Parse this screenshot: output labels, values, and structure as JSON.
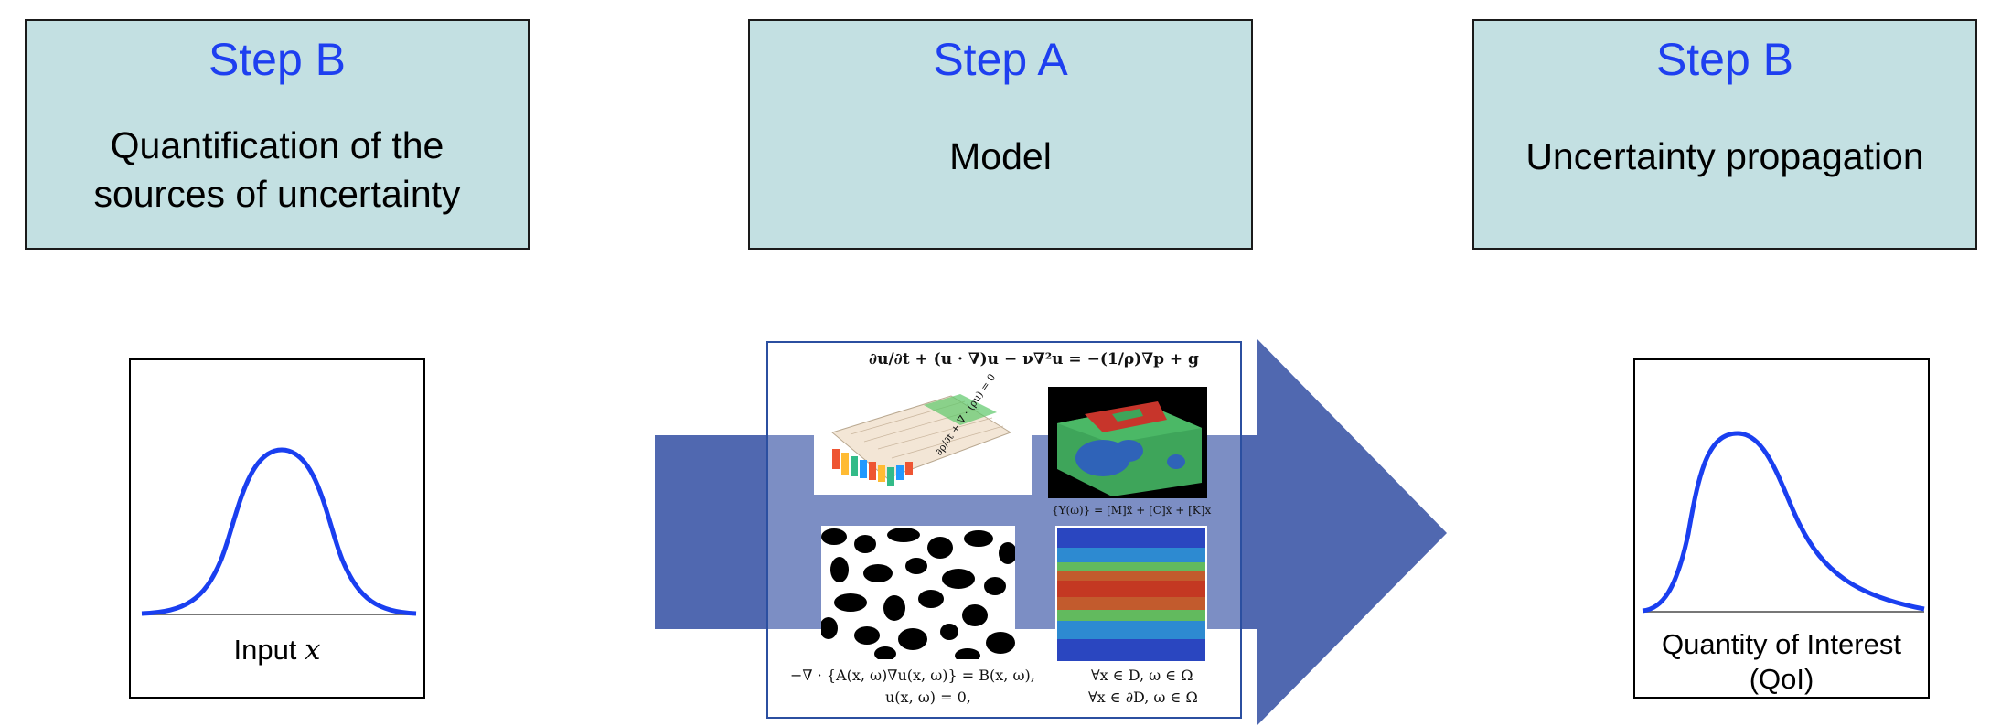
{
  "steps": [
    {
      "title": "Step B",
      "description": "Quantification of the sources of uncertainty"
    },
    {
      "title": "Step A",
      "description": "Model"
    },
    {
      "title": "Step B",
      "description": "Uncertainty propagation"
    }
  ],
  "input_plot": {
    "label": "Input ",
    "label_var": "x"
  },
  "output_plot": {
    "label": "Quantity of Interest (QoI)"
  },
  "model_equations": {
    "navier_stokes": "∂u/∂t + (u · ∇)u − ν∇²u = −(1/ρ)∇p + g",
    "continuity": "∂ρ/∂t + ∇ · (ρu) = 0",
    "structural": "{Y(ω)} = [M]ẍ + [C]ẋ + [K]x",
    "stochastic_pde_1": "−∇ · {A(x, ω)∇u(x, ω)} = B(x, ω),",
    "stochastic_pde_1_domain": "∀x ∈ D, ω ∈ Ω",
    "stochastic_pde_2": "u(x, ω) = 0,",
    "stochastic_pde_2_domain": "∀x ∈ ∂D, ω ∈ Ω"
  },
  "colors": {
    "step_box_fill": "#c3e0e2",
    "step_title": "#1e3ff0",
    "arrow_fill": "#5068b0",
    "curve": "#1a3ff0"
  }
}
